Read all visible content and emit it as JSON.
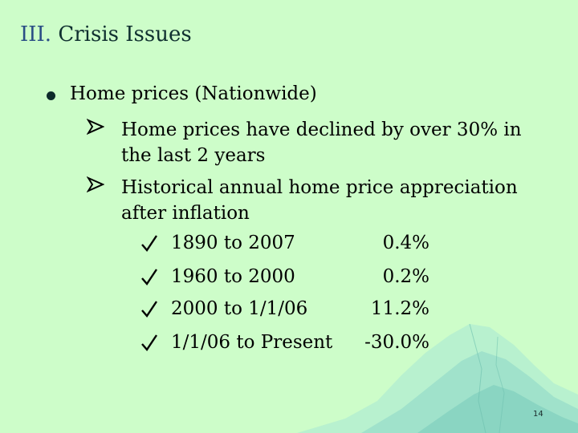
{
  "slide": {
    "title_numeral": "III.",
    "title_text": "Crisis Issues",
    "bullet": {
      "text": "Home prices (Nationwide)",
      "subpoints": [
        {
          "line1": "Home prices have declined by over 30% in",
          "line2": "the last 2 years"
        },
        {
          "line1": "Historical annual home price appreciation",
          "line2": "after inflation"
        }
      ],
      "appreciation_table": [
        {
          "period": "1890 to 2007",
          "value": "0.4%"
        },
        {
          "period": "1960 to 2000",
          "value": "0.2%"
        },
        {
          "period": "2000 to 1/1/06",
          "value": "11.2%"
        },
        {
          "period": "1/1/06 to Present",
          "value": "-30.0%"
        }
      ]
    },
    "page_number": "14"
  },
  "icons": {
    "bullet": "filled-circle-bullet",
    "sub_bullet": "arrow-bullet",
    "check": "checkmark-icon"
  },
  "colors": {
    "background": "#cdfdc9",
    "title_numeral": "#2a4d85",
    "mountain": "#8fd8c8"
  }
}
